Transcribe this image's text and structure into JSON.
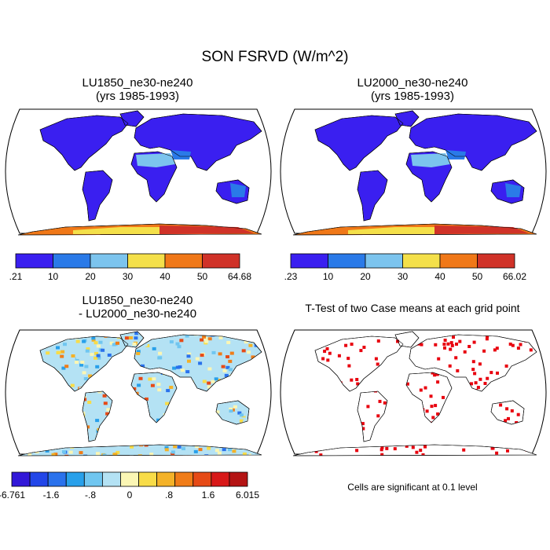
{
  "figure": {
    "title": "SON FSRVD (W/m^2)"
  },
  "panels": [
    {
      "id": "p1",
      "title": [
        "LU1850_ne30-ne240",
        "(yrs 1985-1993)"
      ],
      "kind": "field"
    },
    {
      "id": "p2",
      "title": [
        "LU2000_ne30-ne240",
        "(yrs 1985-1993)"
      ],
      "kind": "field"
    },
    {
      "id": "p3",
      "title": [
        "LU1850_ne30-ne240",
        "- LU2000_ne30-ne240"
      ],
      "kind": "difference"
    },
    {
      "id": "p4",
      "title": [
        "T-Test of two Case means at each grid point"
      ],
      "kind": "significance",
      "note": "Cells are significant at 0.1 level"
    }
  ],
  "colorbars": {
    "p1": {
      "labels": [
        ".21",
        "10",
        "20",
        "30",
        "40",
        "50",
        "64.68"
      ],
      "colors": [
        "#3a1ff0",
        "#2a7ae8",
        "#7cc4ee",
        "#f4e04a",
        "#f07818",
        "#d03228"
      ]
    },
    "p2": {
      "labels": [
        ".23",
        "10",
        "20",
        "30",
        "40",
        "50",
        "66.02"
      ],
      "colors": [
        "#3a1ff0",
        "#2a7ae8",
        "#7cc4ee",
        "#f4e04a",
        "#f07818",
        "#d03228"
      ]
    },
    "p3": {
      "labels": [
        "-6.761",
        "-1.6",
        "-.8",
        "0",
        ".8",
        "1.6",
        "6.015"
      ],
      "colors": [
        "#3218d8",
        "#2246e8",
        "#2a72ec",
        "#28a0ea",
        "#70c6f0",
        "#b4e2f4",
        "#fbf6b4",
        "#f8dc48",
        "#f4b228",
        "#f07c18",
        "#e64a16",
        "#d81818",
        "#b41414"
      ]
    }
  },
  "colors": {
    "ocean": "#ffffff",
    "coast": "#000000",
    "significant": "#e8000e"
  }
}
